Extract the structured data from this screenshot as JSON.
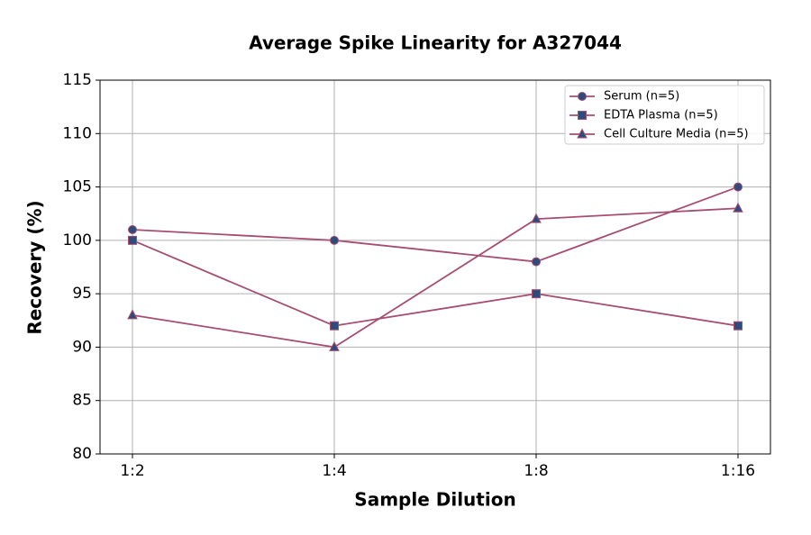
{
  "chart_data": {
    "type": "line",
    "title": "Average Spike Linearity for A327044",
    "x_label": "Sample Dilution",
    "y_label": "Recovery (%)",
    "categories": [
      "1:2",
      "1:4",
      "1:8",
      "1:16"
    ],
    "series": [
      {
        "name": "Serum (n=5)",
        "color": "#a64d70",
        "marker_color": "#2f4b7c",
        "marker": "circle",
        "values": [
          101,
          100,
          98,
          105
        ]
      },
      {
        "name": "EDTA Plasma (n=5)",
        "color": "#a64d70",
        "marker_color": "#2f4b7c",
        "marker": "square",
        "values": [
          100,
          92,
          95,
          92
        ]
      },
      {
        "name": "Cell Culture Media (n=5)",
        "color": "#a64d70",
        "marker_color": "#2f4b7c",
        "marker": "triangle",
        "values": [
          93,
          90,
          102,
          103
        ]
      }
    ],
    "ylim": [
      80,
      115
    ],
    "yticks": [
      80,
      85,
      90,
      95,
      100,
      105,
      110,
      115
    ],
    "grid": true,
    "legend": "upper right"
  }
}
